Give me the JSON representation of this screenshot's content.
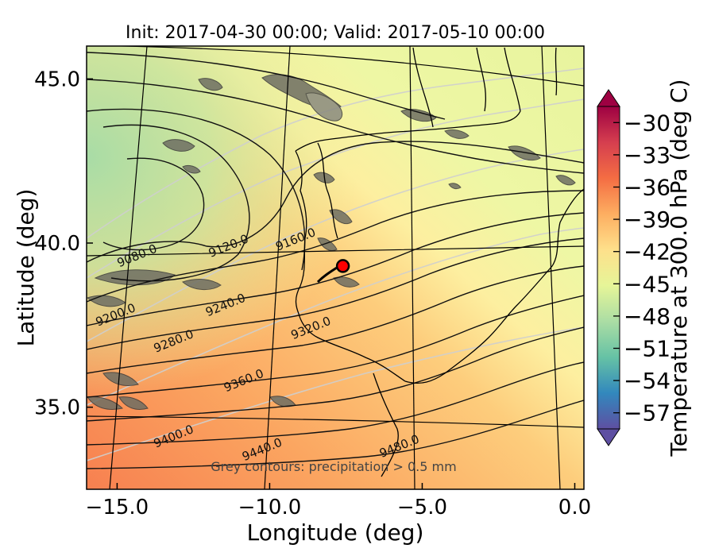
{
  "chart_data": {
    "type": "heatmap",
    "title": "Init: 2017-04-30 00:00; Valid: 2017-05-10 00:00",
    "xlabel": "Longitude (deg)",
    "ylabel": "Latitude (deg)",
    "xlim": [
      -16.0,
      0.3
    ],
    "ylim": [
      32.5,
      46.0
    ],
    "xticks": [
      -15.0,
      -10.0,
      -5.0,
      0.0
    ],
    "xtick_labels": [
      "−15.0",
      "−10.0",
      "−5.0",
      "0.0"
    ],
    "yticks": [
      35.0,
      40.0,
      45.0
    ],
    "ytick_labels": [
      "35.0",
      "40.0",
      "45.0"
    ],
    "grid": true,
    "colorbar": {
      "label": "Temperature at 300.0 hPa (deg C)",
      "range": [
        -58.5,
        -28.5
      ],
      "ticks": [
        -30,
        -33,
        -36,
        -39,
        -42,
        -45,
        -48,
        -51,
        -54,
        -57
      ],
      "tick_labels": [
        "−30",
        "−33",
        "−36",
        "−39",
        "−42",
        "−45",
        "−48",
        "−51",
        "−54",
        "−57"
      ],
      "colormap_stops": [
        "#5e4fa2",
        "#3288bd",
        "#66c2a5",
        "#abdda4",
        "#e6f598",
        "#fee08b",
        "#fdae61",
        "#f46d43",
        "#d53e4f",
        "#9e0142"
      ],
      "extend": "both"
    },
    "height_contours": {
      "units": "m",
      "labels": [
        {
          "value": "9080.0",
          "lon": -14.3,
          "lat": 39.5
        },
        {
          "value": "9120.0",
          "lon": -11.3,
          "lat": 39.8
        },
        {
          "value": "9160.0",
          "lon": -9.1,
          "lat": 40.0
        },
        {
          "value": "9200.0",
          "lon": -15.0,
          "lat": 37.7
        },
        {
          "value": "9240.0",
          "lon": -11.4,
          "lat": 38.0
        },
        {
          "value": "9280.0",
          "lon": -13.1,
          "lat": 36.9
        },
        {
          "value": "9320.0",
          "lon": -8.6,
          "lat": 37.3
        },
        {
          "value": "9360.0",
          "lon": -10.8,
          "lat": 35.7
        },
        {
          "value": "9400.0",
          "lon": -13.1,
          "lat": 34.0
        },
        {
          "value": "9440.0",
          "lon": -10.2,
          "lat": 33.6
        },
        {
          "value": "9480.0",
          "lon": -5.7,
          "lat": 33.7
        }
      ]
    },
    "marker": {
      "lon": -7.6,
      "lat": 39.3,
      "color": "#ff0000"
    },
    "annotation": "Grey contours: precipitation > 0.5 mm"
  }
}
